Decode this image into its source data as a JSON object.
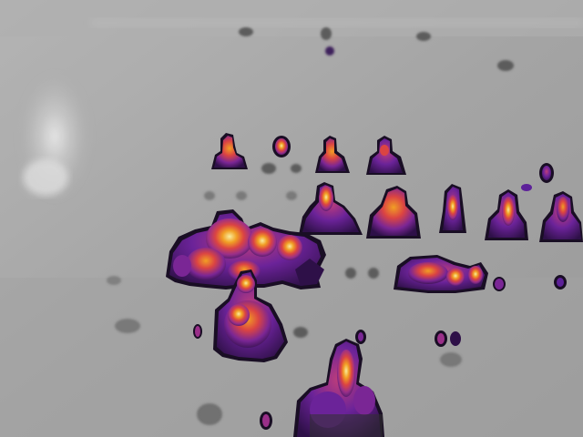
{
  "image": {
    "kind": "thermal-camera-frame",
    "palette": [
      "#2a0a45",
      "#5b1c9a",
      "#9b2b8a",
      "#e0413f",
      "#f7a01f",
      "#fff2a0"
    ],
    "background_color": "#a9a9a9",
    "subjects": [
      "person-back-row-1",
      "person-back-row-2",
      "person-back-row-3",
      "person-back-row-4",
      "person-middle-row-1",
      "person-middle-row-2",
      "person-middle-row-3",
      "person-middle-row-4",
      "person-middle-row-5",
      "person-front-left-group",
      "person-reclining-right",
      "person-front-seated",
      "person-foreground-bottom"
    ]
  }
}
